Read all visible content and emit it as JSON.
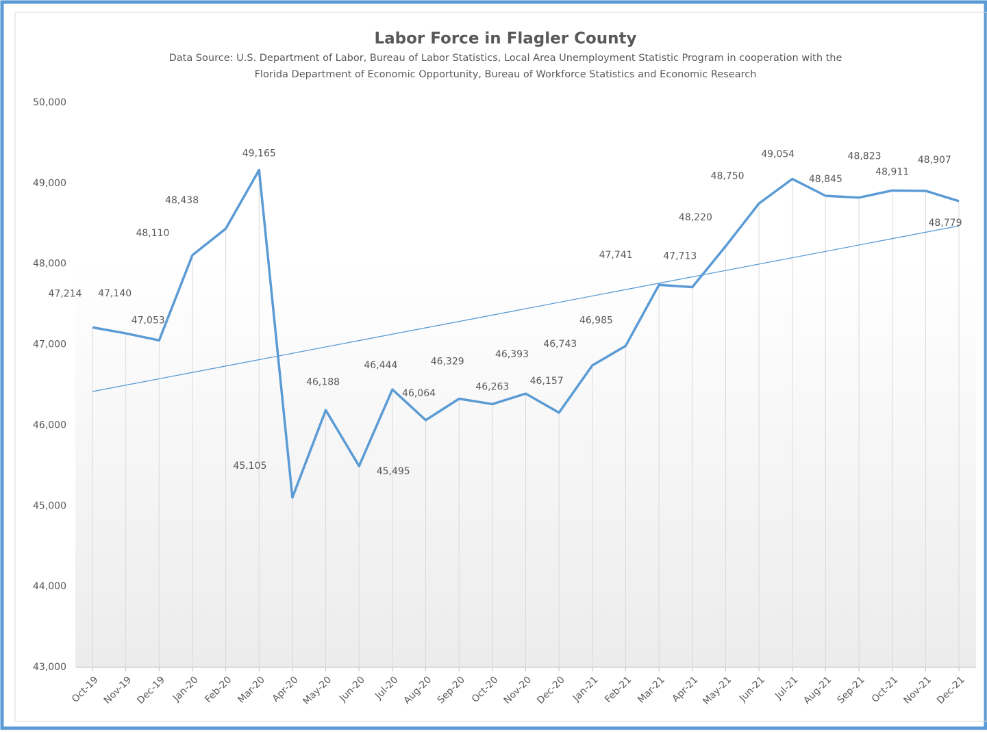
{
  "chart_data": {
    "type": "line",
    "title": "Labor Force in Flagler County",
    "subtitle": [
      "Data Source:  U.S. Department of Labor, Bureau of Labor Statistics, Local Area Unemployment Statistic Program in cooperation  with the",
      "Florida Department of Economic Opportunity, Bureau of Workforce Statistics and Economic Research"
    ],
    "categories": [
      "Oct-19",
      "Nov-19",
      "Dec-19",
      "Jan-20",
      "Feb-20",
      "Mar-20",
      "Apr-20",
      "May-20",
      "Jun-20",
      "Jul-20",
      "Aug-20",
      "Sep-20",
      "Oct-20",
      "Nov-20",
      "Dec-20",
      "Jan-21",
      "Feb-21",
      "Mar-21",
      "Apr-21",
      "May-21",
      "Jun-21",
      "Jul-21",
      "Aug-21",
      "Sep-21",
      "Oct-21",
      "Nov-21",
      "Dec-21"
    ],
    "values": [
      47214,
      47140,
      47053,
      48110,
      48438,
      49165,
      45105,
      46188,
      45495,
      46444,
      46064,
      46329,
      46263,
      46393,
      46157,
      46743,
      46985,
      47741,
      47713,
      48220,
      48750,
      49054,
      48845,
      48823,
      48911,
      48907,
      48779
    ],
    "value_labels": [
      "47,214",
      "47,140",
      "47,053",
      "48,110",
      "48,438",
      "49,165",
      "45,105",
      "46,188",
      "45,495",
      "46,444",
      "46,064",
      "46,329",
      "46,263",
      "46,393",
      "46,157",
      "46,743",
      "46,985",
      "47,741",
      "47,713",
      "48,220",
      "48,750",
      "49,054",
      "48,845",
      "48,823",
      "48,911",
      "48,907",
      "48,779"
    ],
    "color": "#5b9bd5",
    "trendline": true,
    "ylim": [
      43000,
      50000
    ],
    "yticks": [
      {
        "value": 43000,
        "label": "43,000"
      },
      {
        "value": 44000,
        "label": "44,000"
      },
      {
        "value": 45000,
        "label": "45,000"
      },
      {
        "value": 46000,
        "label": "46,000"
      },
      {
        "value": 47000,
        "label": "47,000"
      },
      {
        "value": 48000,
        "label": "48,000"
      },
      {
        "value": 49000,
        "label": "49,000"
      },
      {
        "value": 50000,
        "label": "50,000"
      }
    ]
  }
}
